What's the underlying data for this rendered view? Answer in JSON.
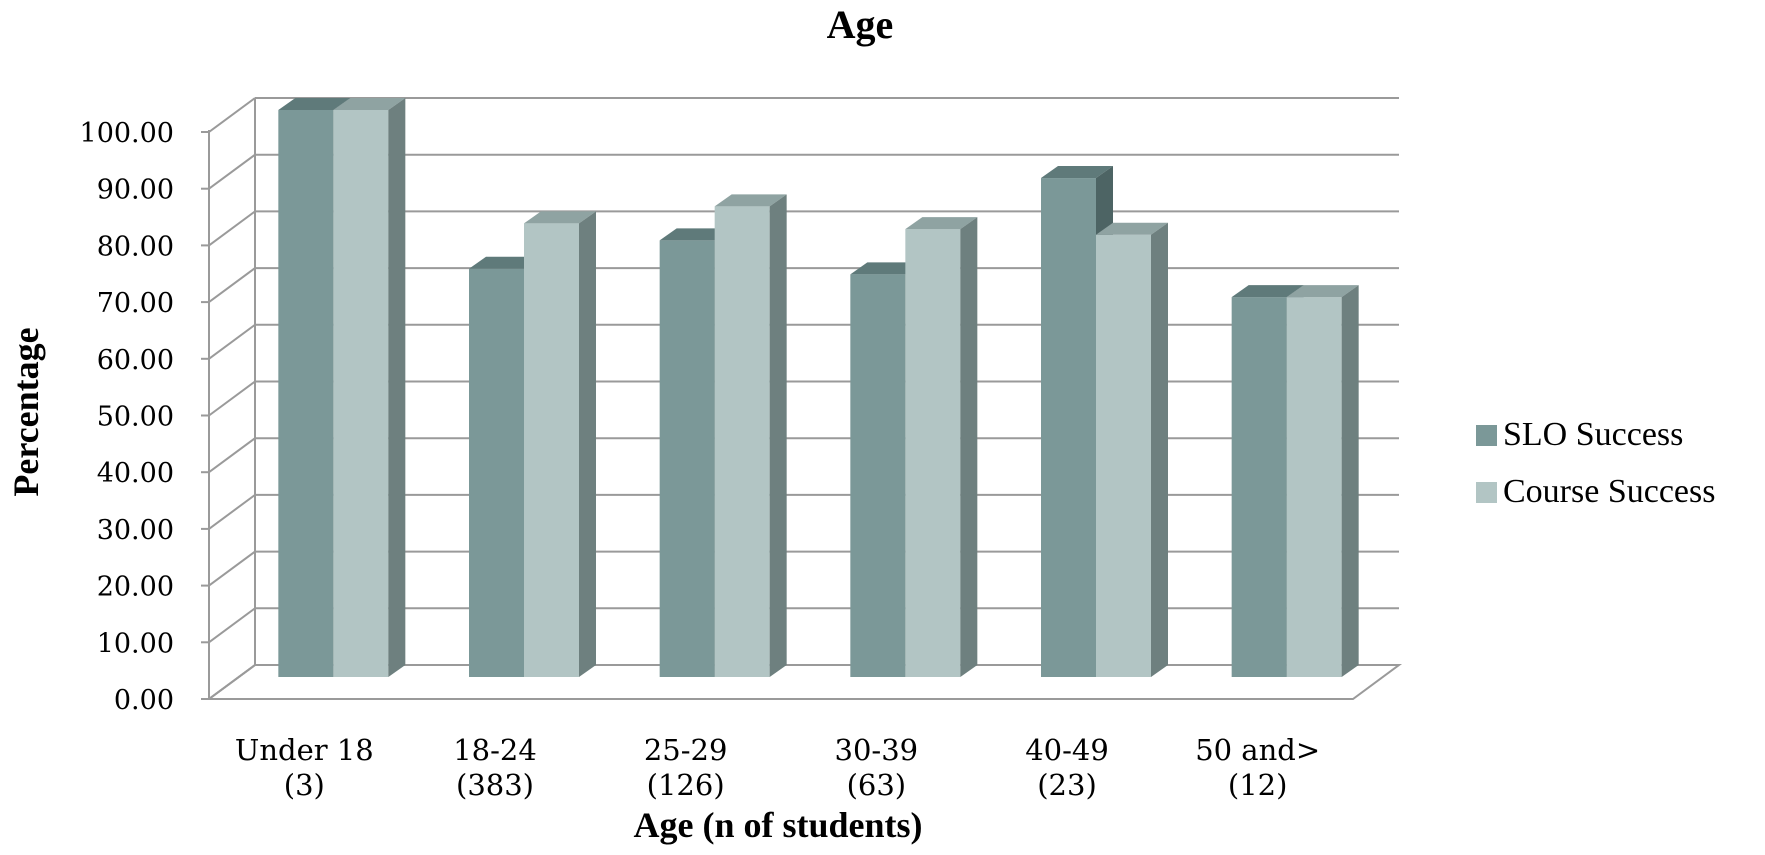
{
  "chart_data": {
    "type": "bar",
    "title": "Age",
    "xlabel": "Age (n of students)",
    "ylabel": "Percentage",
    "categories": [
      [
        "Under 18",
        "(3)"
      ],
      [
        "18-24",
        "(383)"
      ],
      [
        "25-29",
        "(126)"
      ],
      [
        "30-39",
        "(63)"
      ],
      [
        "40-49",
        "(23)"
      ],
      [
        "50 and>",
        "(12)"
      ]
    ],
    "series": [
      {
        "name": "SLO Success",
        "color": "#7b9898",
        "top_color": "#5f7a7a",
        "side_color": "#4d6464",
        "values": [
          100.0,
          72.0,
          77.0,
          71.0,
          88.0,
          67.0
        ]
      },
      {
        "name": "Course Success",
        "color": "#b2c5c4",
        "top_color": "#8fa3a2",
        "side_color": "#6e807f",
        "values": [
          100.0,
          80.0,
          83.0,
          79.0,
          78.0,
          67.0
        ]
      }
    ],
    "ylim": [
      0,
      100
    ],
    "yticks": [
      "0.00",
      "10.00",
      "20.00",
      "30.00",
      "40.00",
      "50.00",
      "60.00",
      "70.00",
      "80.00",
      "90.00",
      "100.00"
    ],
    "grid": true,
    "three_d": true,
    "legend_position": "right",
    "gridline_color": "#9a9a9a"
  }
}
